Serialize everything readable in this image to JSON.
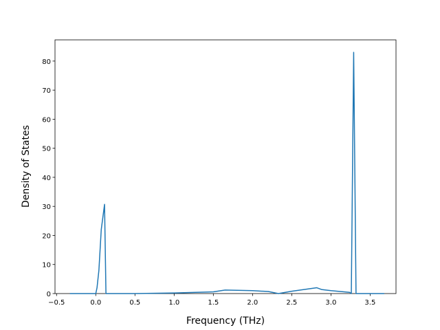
{
  "chart_data": {
    "type": "line",
    "xlabel": "Frequency (THz)",
    "ylabel": "Density of States",
    "x": [
      -0.33,
      0.0,
      0.016,
      0.04,
      0.07,
      0.112,
      0.13,
      0.5,
      1.0,
      1.5,
      1.65,
      2.0,
      2.2,
      2.33,
      2.5,
      2.82,
      2.88,
      3.0,
      3.24,
      3.26,
      3.29,
      3.32,
      3.68
    ],
    "series": [
      {
        "color": "#1f77b4",
        "values": [
          0,
          0,
          2,
          8,
          22,
          30.7,
          0,
          0,
          0.2,
          0.6,
          1.2,
          1.0,
          0.7,
          0,
          0.8,
          2.0,
          1.4,
          1.0,
          0.4,
          0,
          83,
          0,
          0
        ]
      }
    ],
    "xlim": [
      -0.52,
      3.83
    ],
    "ylim": [
      0,
      87.3
    ],
    "xticks": [
      {
        "value": -0.5,
        "label": "−0.5"
      },
      {
        "value": 0,
        "label": "0.0"
      },
      0.5,
      {
        "value": 1,
        "label": "1.0"
      },
      1.5,
      {
        "value": 2,
        "label": "2.0"
      },
      2.5,
      {
        "value": 3,
        "label": "3.0"
      },
      3.5
    ],
    "yticks": [
      0,
      10,
      20,
      30,
      40,
      50,
      60,
      70,
      80
    ]
  }
}
